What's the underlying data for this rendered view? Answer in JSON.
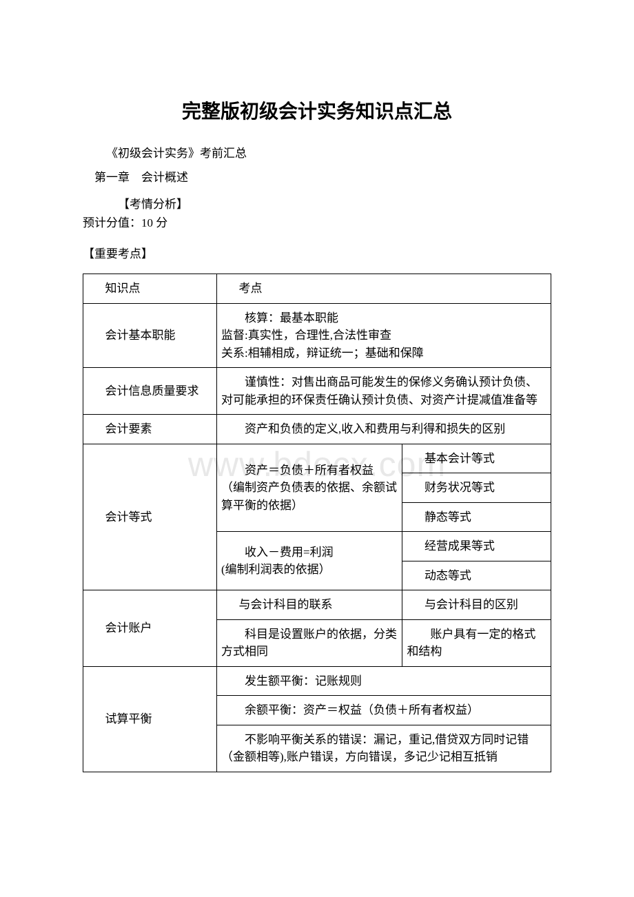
{
  "title": "完整版初级会计实务知识点汇总",
  "subtitle": "《初级会计实务》考前汇总",
  "chapter": "第一章　会计概述",
  "analysis_label": "【考情分析】",
  "score_line": "预计分值：10 分",
  "keypoints_label": "【重要考点】",
  "watermark": "www.bdocx.com",
  "table": {
    "header": {
      "col1": "知识点",
      "col2": "考点"
    },
    "rows": [
      {
        "col1": "会计基本职能",
        "col2": "　　核算：最基本职能\n监督:真实性，合理性,合法性审查\n关系:相辅相成，辩证统一；基础和保障"
      },
      {
        "col1": "会计信息质量要求",
        "col2": "　　谨慎性：对售出商品可能发生的保修义务确认预计负债、对可能承担的环保责任确认预计负债、对资产计提减值准备等"
      },
      {
        "col1": "会计要素",
        "col2": "　　资产和负债的定义,收入和费用与利得和损失的区别"
      }
    ],
    "equation_section": {
      "col1": "会计等式",
      "left1_line1": "　　资产＝负债＋所有者权益",
      "left1_line2": "（编制资产负债表的依据、余额试算平衡的依据）",
      "right1": "基本会计等式",
      "right2": "财务状况等式",
      "right3": "静态等式",
      "left2_line1": "　　收入－费用=利润",
      "left2_line2": "(编制利润表的依据）",
      "right4": "经营成果等式",
      "right5": "动态等式"
    },
    "account_section": {
      "col1": "会计账户",
      "row1_left": "与会计科目的联系",
      "row1_right": "与会计科目的区别",
      "row2_left": "　　科目是设置账户的依据，分类方式相同",
      "row2_right": "　　账户具有一定的格式和结构"
    },
    "balance_section": {
      "col1": "试算平衡",
      "row1": "　　发生额平衡：记账规则",
      "row2": "　　余额平衡：资产＝权益（负债＋所有者权益）",
      "row3": "　　不影响平衡关系的错误：漏记，重记,借贷双方同时记错（金额相等),账户错误，方向错误，多记少记相互抵销"
    }
  },
  "colors": {
    "text": "#000000",
    "background": "#ffffff",
    "border": "#000000",
    "watermark": "#e8e8e8"
  }
}
